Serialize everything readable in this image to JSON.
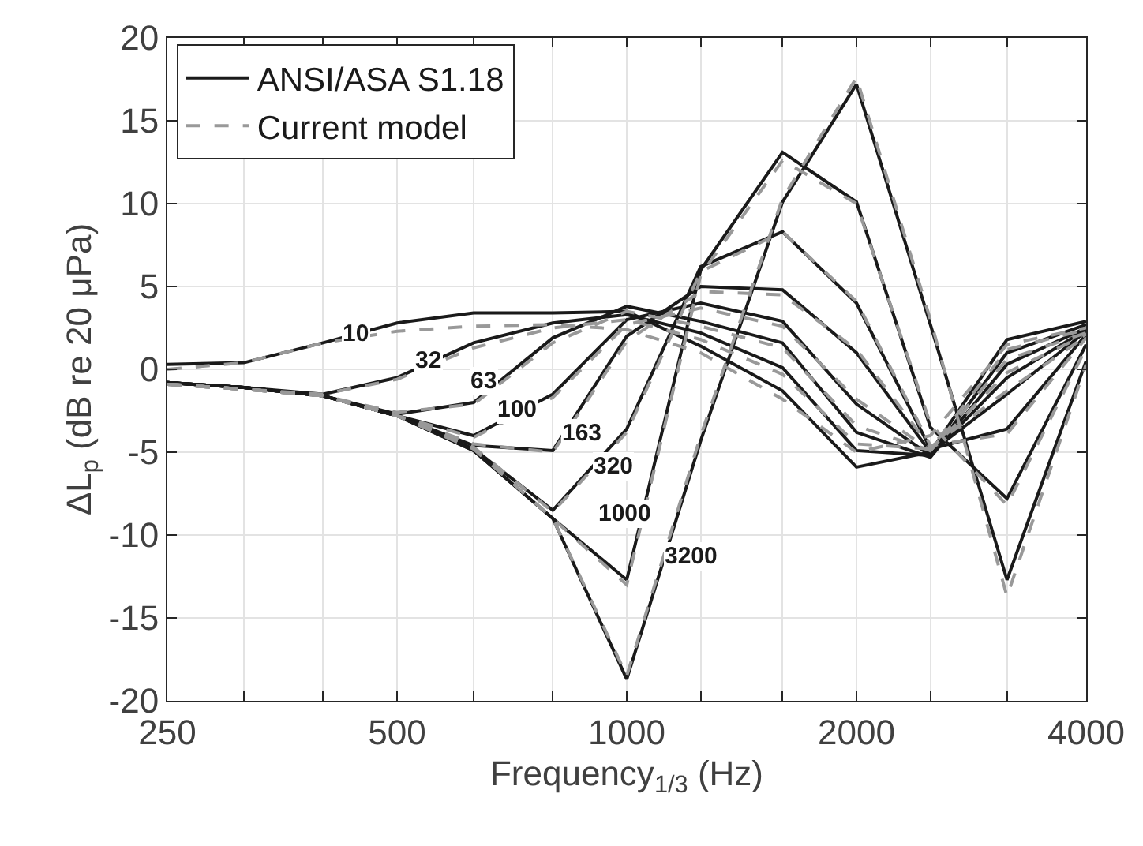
{
  "chart_data": {
    "type": "line",
    "xlabel": "Frequency$_{1/3}$ (Hz)",
    "ylabel": "ΔL$_{p}$ (dB re 20 μPa)",
    "log": "x",
    "grid": true,
    "legend": "top left",
    "marker": "none",
    "xlim": [
      250,
      4000
    ],
    "xticks": [
      250,
      {
        "value": 315,
        "label": null
      },
      {
        "value": 400,
        "label": null
      },
      500,
      {
        "value": 630,
        "label": null
      },
      {
        "value": 800,
        "label": null
      },
      1000,
      {
        "value": 1250,
        "label": null
      },
      {
        "value": 1600,
        "label": null
      },
      2000,
      {
        "value": 2500,
        "label": null
      },
      {
        "value": 3150,
        "label": null
      },
      4000
    ],
    "ylim": [
      -20,
      20
    ],
    "yticks": [
      -20,
      -15,
      -10,
      -5,
      0,
      5,
      10,
      15,
      20
    ],
    "x": [
      250,
      315,
      400,
      500,
      630,
      800,
      1000,
      1250,
      1600,
      2000,
      2500,
      3150,
      4000
    ],
    "series": [
      {
        "name": "ANSI/ASA S1.18",
        "color": "#1a1a1a",
        "line_style": "solid",
        "values": [
          0.3,
          0.4,
          1.6,
          2.8,
          3.4,
          3.4,
          3.5,
          1.4,
          -1.3,
          -5.9,
          -5.0,
          1.8,
          2.9
        ]
      },
      {
        "color": "#1a1a1a",
        "line_style": "solid",
        "values": [
          -0.8,
          -1.1,
          -1.5,
          -0.5,
          1.6,
          2.8,
          3.3,
          2.2,
          0.1,
          -4.9,
          -5.2,
          1.0,
          2.7
        ]
      },
      {
        "color": "#1a1a1a",
        "line_style": "solid",
        "values": [
          -0.8,
          -1.1,
          -1.6,
          -2.7,
          -2.0,
          1.9,
          3.8,
          2.9,
          1.6,
          -3.8,
          -5.3,
          0.3,
          2.5
        ]
      },
      {
        "color": "#1a1a1a",
        "line_style": "solid",
        "values": [
          -0.8,
          -1.1,
          -1.6,
          -2.8,
          -4.0,
          -1.5,
          3.0,
          4.0,
          2.9,
          -2.1,
          -5.2,
          -0.5,
          2.4
        ]
      },
      {
        "color": "#1a1a1a",
        "line_style": "solid",
        "values": [
          -0.8,
          -1.1,
          -1.6,
          -2.8,
          -4.6,
          -4.9,
          2.0,
          5.0,
          4.8,
          1.0,
          -5.0,
          -1.5,
          2.3
        ]
      },
      {
        "color": "#1a1a1a",
        "line_style": "solid",
        "values": [
          -0.8,
          -1.1,
          -1.6,
          -2.8,
          -4.8,
          -8.5,
          -3.6,
          6.2,
          8.3,
          4.0,
          -4.8,
          -3.6,
          2.1
        ]
      },
      {
        "color": "#1a1a1a",
        "line_style": "solid",
        "values": [
          -0.8,
          -1.1,
          -1.6,
          -2.8,
          -4.9,
          -9.0,
          -12.7,
          6.0,
          13.1,
          10.1,
          -3.5,
          -7.8,
          1.5
        ]
      },
      {
        "color": "#1a1a1a",
        "line_style": "solid",
        "values": [
          -0.8,
          -1.1,
          -1.6,
          -2.8,
          -4.9,
          -9.0,
          -18.7,
          -4.3,
          10.1,
          17.2,
          2.7,
          -12.7,
          0.5
        ]
      },
      {
        "name": "Current model",
        "color": "#999999",
        "line_style": "dashed",
        "values": [
          0.0,
          0.4,
          1.6,
          2.3,
          2.6,
          2.7,
          2.4,
          1.0,
          -1.8,
          -5.0,
          -4.0,
          1.5,
          2.5
        ]
      },
      {
        "color": "#999999",
        "line_style": "dashed",
        "values": [
          -0.9,
          -1.2,
          -1.5,
          -0.6,
          1.3,
          2.5,
          3.0,
          1.8,
          -0.3,
          -4.5,
          -4.8,
          1.2,
          2.4
        ]
      },
      {
        "color": "#999999",
        "line_style": "dashed",
        "values": [
          -0.9,
          -1.2,
          -1.6,
          -2.6,
          -2.1,
          1.6,
          3.5,
          2.6,
          1.3,
          -3.4,
          -4.9,
          0.6,
          2.2
        ]
      },
      {
        "color": "#999999",
        "line_style": "dashed",
        "values": [
          -0.9,
          -1.2,
          -1.6,
          -2.8,
          -4.1,
          -1.7,
          2.7,
          3.7,
          2.6,
          -1.8,
          -4.9,
          -0.2,
          2.1
        ]
      },
      {
        "color": "#999999",
        "line_style": "dashed",
        "values": [
          -0.9,
          -1.2,
          -1.6,
          -2.8,
          -4.5,
          -5.0,
          1.7,
          4.7,
          4.5,
          1.2,
          -4.7,
          -1.3,
          2.0
        ]
      },
      {
        "color": "#999999",
        "line_style": "dashed",
        "values": [
          -0.9,
          -1.2,
          -1.6,
          -2.8,
          -4.7,
          -8.6,
          -3.8,
          5.9,
          8.3,
          4.1,
          -4.6,
          -3.9,
          1.9
        ]
      },
      {
        "color": "#999999",
        "line_style": "dashed",
        "values": [
          -0.9,
          -1.2,
          -1.6,
          -2.8,
          -4.8,
          -9.0,
          -13.0,
          5.7,
          12.6,
          10.0,
          -3.3,
          -8.2,
          1.3
        ]
      },
      {
        "color": "#999999",
        "line_style": "dashed",
        "values": [
          -0.9,
          -1.2,
          -1.6,
          -2.8,
          -4.8,
          -9.0,
          -18.5,
          -4.0,
          10.3,
          17.6,
          3.0,
          -13.7,
          0.3
        ]
      }
    ],
    "annotations": [
      {
        "text": "10",
        "x": 442,
        "y": 2.1
      },
      {
        "text": "32",
        "x": 550,
        "y": 0.5
      },
      {
        "text": "63",
        "x": 649,
        "y": -0.7
      },
      {
        "text": "100",
        "x": 718,
        "y": -2.4
      },
      {
        "text": "163",
        "x": 871,
        "y": -3.9
      },
      {
        "text": "320",
        "x": 962,
        "y": -5.9
      },
      {
        "text": "1000",
        "x": 994,
        "y": -8.7
      },
      {
        "text": "3200",
        "x": 1213,
        "y": -11.3
      }
    ]
  }
}
